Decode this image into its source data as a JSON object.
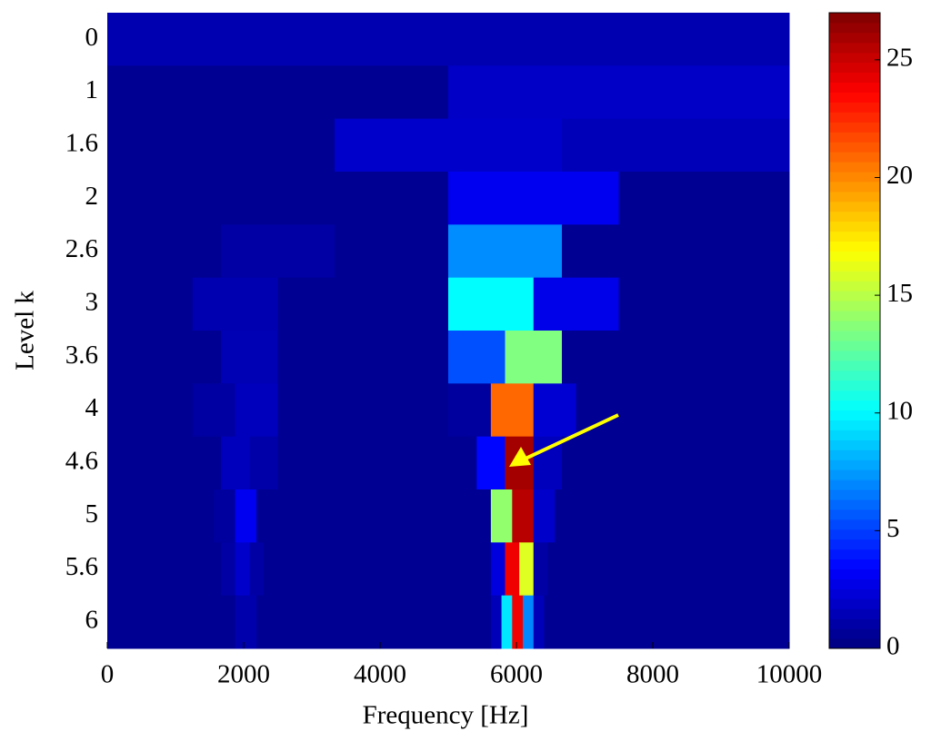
{
  "chart_data": {
    "type": "heatmap",
    "colormap": "jet",
    "xlabel": "Frequency [Hz]",
    "ylabel": "Level k",
    "xlim": [
      0,
      10000
    ],
    "xticks": [
      0,
      2000,
      4000,
      6000,
      8000,
      10000
    ],
    "clim": [
      0,
      27
    ],
    "cticks": [
      0,
      5,
      10,
      15,
      20,
      25
    ],
    "rows": [
      {
        "label": "0",
        "cells": [
          [
            0,
            10000,
            1.3
          ]
        ]
      },
      {
        "label": "1",
        "cells": [
          [
            0,
            5000,
            0.5
          ],
          [
            5000,
            10000,
            1.9
          ]
        ]
      },
      {
        "label": "1.6",
        "cells": [
          [
            0,
            3333.3,
            0.5
          ],
          [
            3333.3,
            6666.7,
            2.0
          ],
          [
            6666.7,
            10000,
            1.5
          ]
        ]
      },
      {
        "label": "2",
        "cells": [
          [
            0,
            5000,
            0.5
          ],
          [
            5000,
            7500,
            3.0
          ],
          [
            7500,
            10000,
            0.5
          ]
        ]
      },
      {
        "label": "2.6",
        "cells": [
          [
            0,
            1666.7,
            0.5
          ],
          [
            1666.7,
            3333.3,
            1.0
          ],
          [
            3333.3,
            5000,
            0.5
          ],
          [
            5000,
            6666.7,
            7.1
          ],
          [
            6666.7,
            10000,
            0.5
          ]
        ]
      },
      {
        "label": "3",
        "cells": [
          [
            0,
            1250,
            0.5
          ],
          [
            1250,
            2500,
            1.3
          ],
          [
            2500,
            5000,
            0.5
          ],
          [
            5000,
            6250,
            10.1
          ],
          [
            6250,
            7500,
            2.8
          ],
          [
            7500,
            10000,
            0.5
          ]
        ]
      },
      {
        "label": "3.6",
        "cells": [
          [
            0,
            1666.7,
            0.5
          ],
          [
            1666.7,
            2500,
            1.4
          ],
          [
            2500,
            5000,
            0.5
          ],
          [
            5000,
            5833.3,
            5.5
          ],
          [
            5833.3,
            6666.7,
            13.5
          ],
          [
            6666.7,
            10000,
            0.5
          ]
        ]
      },
      {
        "label": "4",
        "cells": [
          [
            0,
            1250,
            0.5
          ],
          [
            1250,
            1875,
            0.9
          ],
          [
            1875,
            2500,
            1.6
          ],
          [
            2500,
            5000,
            0.5
          ],
          [
            5000,
            5625,
            0.8
          ],
          [
            5625,
            6250,
            20.9
          ],
          [
            6250,
            6875,
            2.2
          ],
          [
            6875,
            10000,
            0.5
          ]
        ]
      },
      {
        "label": "4.6",
        "cells": [
          [
            0,
            1666.7,
            0.5
          ],
          [
            1666.7,
            2083.3,
            1.6
          ],
          [
            2083.3,
            2500,
            1.1
          ],
          [
            2500,
            5416.7,
            0.5
          ],
          [
            5416.7,
            5833.3,
            3.5
          ],
          [
            5833.3,
            6250,
            26
          ],
          [
            6250,
            6666.7,
            1.6
          ],
          [
            6666.7,
            10000,
            0.5
          ]
        ]
      },
      {
        "label": "5",
        "cells": [
          [
            0,
            1562.5,
            0.5
          ],
          [
            1562.5,
            1875,
            0.8
          ],
          [
            1875,
            2187.5,
            3.0
          ],
          [
            2187.5,
            5625,
            0.5
          ],
          [
            5625,
            5937.5,
            14
          ],
          [
            5937.5,
            6250,
            25.5
          ],
          [
            6250,
            6562.5,
            2.0
          ],
          [
            6562.5,
            10000,
            0.5
          ]
        ]
      },
      {
        "label": "5.6",
        "cells": [
          [
            0,
            1666.7,
            0.5
          ],
          [
            1666.7,
            1875,
            1.0
          ],
          [
            1875,
            2083.3,
            2.0
          ],
          [
            2083.3,
            2291.7,
            1.0
          ],
          [
            2291.7,
            5625,
            0.5
          ],
          [
            5625,
            5833.3,
            2.5
          ],
          [
            5833.3,
            6041.7,
            24
          ],
          [
            6041.7,
            6250,
            16
          ],
          [
            6250,
            6458.3,
            1.0
          ],
          [
            6458.3,
            10000,
            0.5
          ]
        ]
      },
      {
        "label": "6",
        "cells": [
          [
            0,
            1875,
            0.5
          ],
          [
            1875,
            2031.3,
            1.2
          ],
          [
            2031.3,
            2187.5,
            1.2
          ],
          [
            2187.5,
            5625,
            0.5
          ],
          [
            5625,
            5781.3,
            1.5
          ],
          [
            5781.3,
            5937.5,
            9.5
          ],
          [
            5937.5,
            6093.8,
            24
          ],
          [
            6093.8,
            6250,
            7
          ],
          [
            6250,
            6406.3,
            1.5
          ],
          [
            6406.3,
            10000,
            0.5
          ]
        ]
      }
    ]
  }
}
